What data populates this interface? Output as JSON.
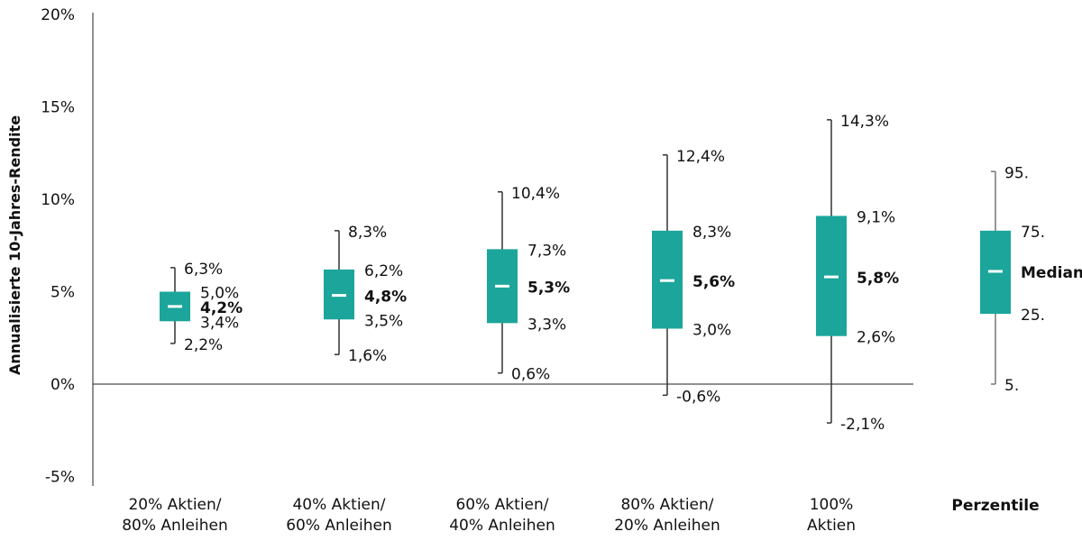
{
  "chart_data": {
    "type": "boxplot",
    "ylabel": "Annualisierte 10-Jahres-Rendite",
    "ylim": [
      -5,
      20
    ],
    "yticks": [
      -5,
      0,
      5,
      10,
      15,
      20
    ],
    "ytick_labels": [
      "-5%",
      "0%",
      "5%",
      "10%",
      "15%",
      "20%"
    ],
    "grid": false,
    "box_color": "#1ca59b",
    "categories": [
      [
        "20% Aktien/",
        "80% Anleihen"
      ],
      [
        "40% Aktien/",
        "60% Anleihen"
      ],
      [
        "60% Aktien/",
        "40% Anleihen"
      ],
      [
        "80% Aktien/",
        "20% Anleihen"
      ],
      [
        "100%",
        "Aktien"
      ]
    ],
    "boxes": [
      {
        "p5": 2.2,
        "p25": 3.4,
        "median": 4.2,
        "p75": 5.0,
        "p95": 6.3,
        "labels": [
          "2,2%",
          "3,4%",
          "4,2%",
          "5,0%",
          "6,3%"
        ]
      },
      {
        "p5": 1.6,
        "p25": 3.5,
        "median": 4.8,
        "p75": 6.2,
        "p95": 8.3,
        "labels": [
          "1,6%",
          "3,5%",
          "4,8%",
          "6,2%",
          "8,3%"
        ]
      },
      {
        "p5": 0.6,
        "p25": 3.3,
        "median": 5.3,
        "p75": 7.3,
        "p95": 10.4,
        "labels": [
          "0,6%",
          "3,3%",
          "5,3%",
          "7,3%",
          "10,4%"
        ]
      },
      {
        "p5": -0.6,
        "p25": 3.0,
        "median": 5.6,
        "p75": 8.3,
        "p95": 12.4,
        "labels": [
          "-0,6%",
          "3,0%",
          "5,6%",
          "8,3%",
          "12,4%"
        ]
      },
      {
        "p5": -2.1,
        "p25": 2.6,
        "median": 5.8,
        "p75": 9.1,
        "p95": 14.3,
        "labels": [
          "-2,1%",
          "2,6%",
          "5,8%",
          "9,1%",
          "14,3%"
        ]
      }
    ],
    "legend": {
      "title": "Perzentile",
      "labels": [
        "5.",
        "25.",
        "Median",
        "75.",
        "95."
      ]
    }
  }
}
